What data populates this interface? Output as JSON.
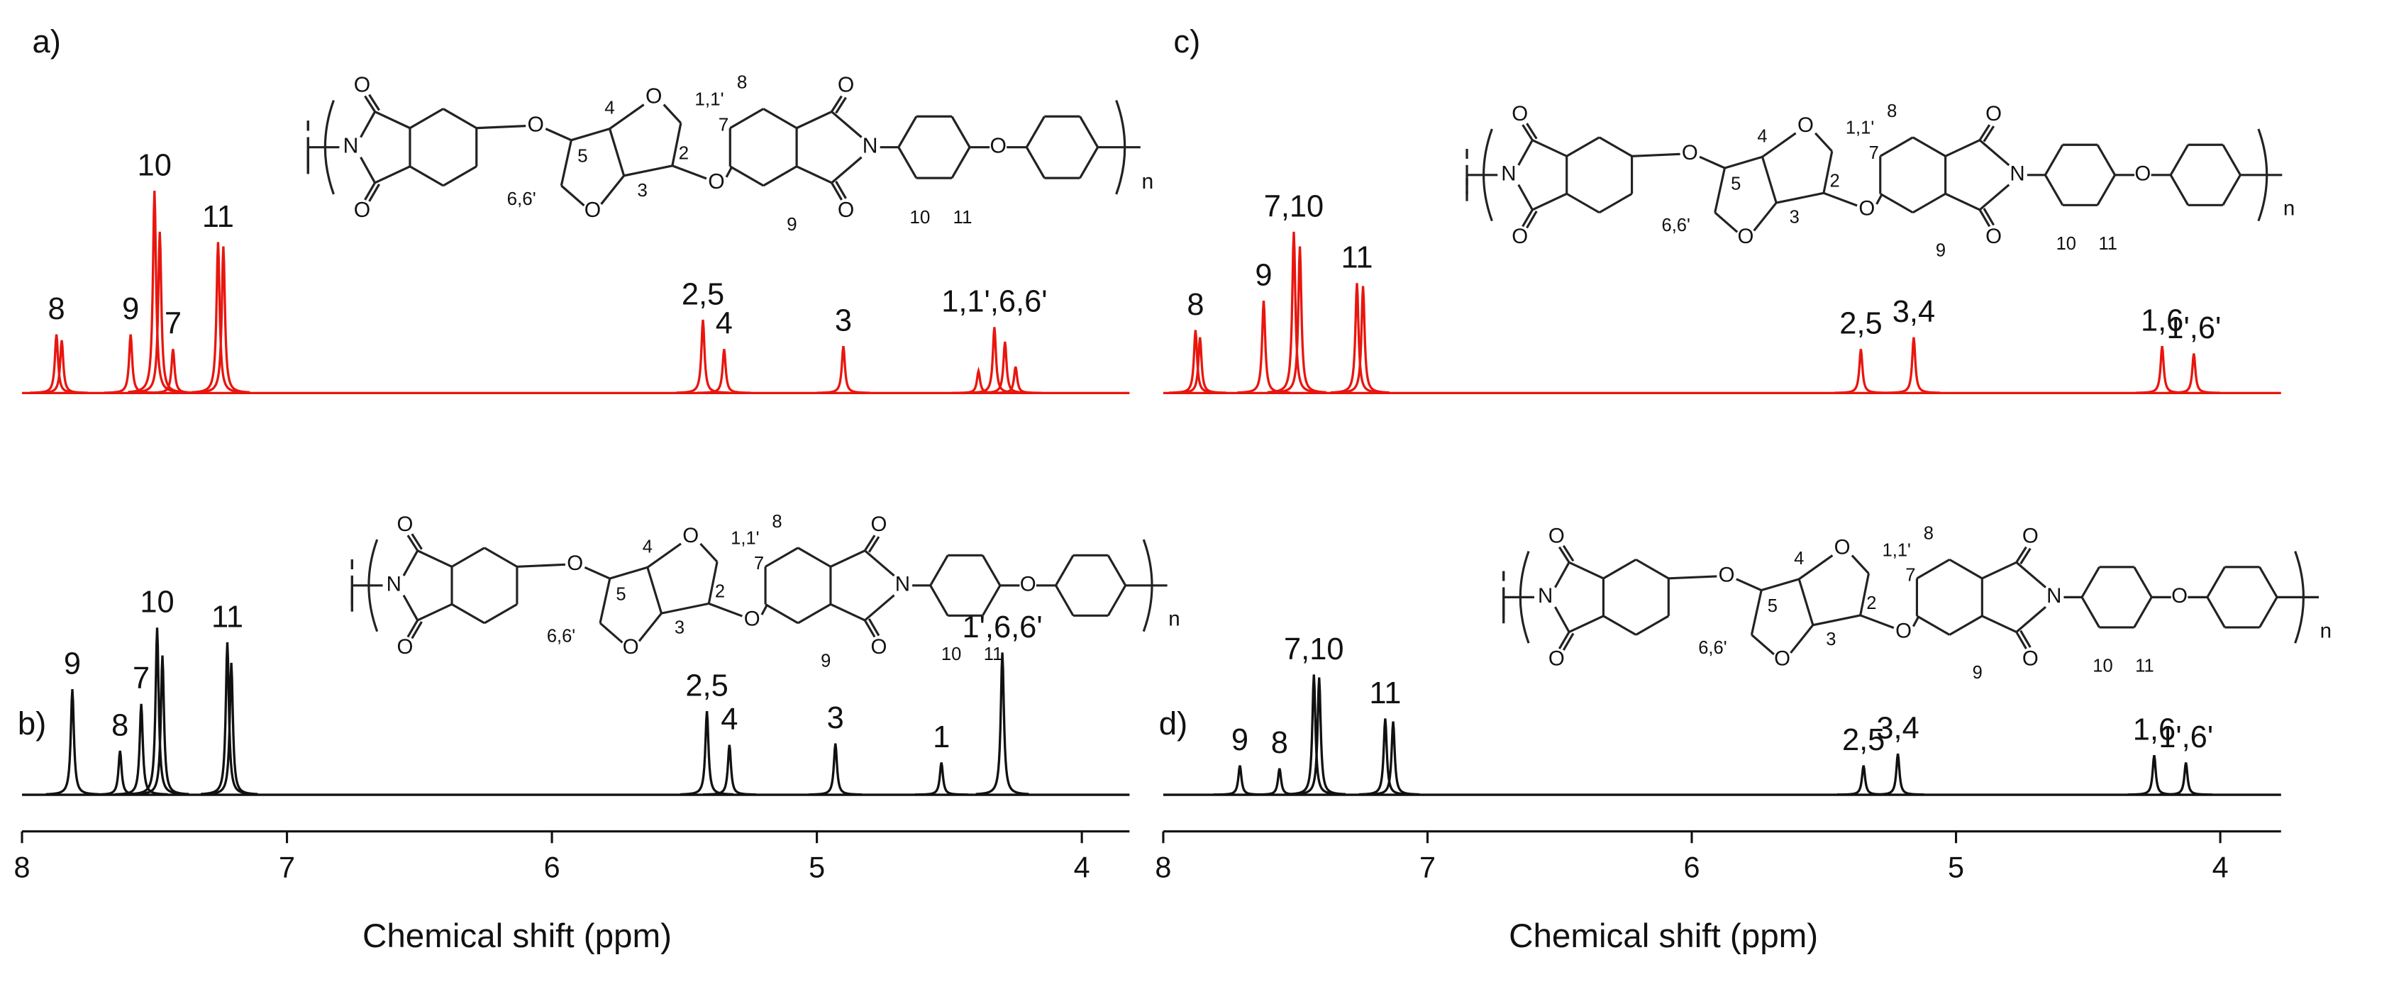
{
  "chart_data": [
    {
      "type": "spectrum",
      "x_label": "Chemical shift (ppm)",
      "xlim": [
        8,
        3.82
      ],
      "xticks": [
        8,
        7,
        6,
        5,
        4
      ],
      "panels": [
        {
          "panel_label": "a)",
          "color": "#e8160e",
          "ppm": [
            7.87,
            7.85,
            7.59,
            7.5,
            7.48,
            7.43,
            7.26,
            7.24,
            5.43,
            5.35,
            4.9,
            4.39,
            4.33,
            4.29,
            4.25
          ],
          "intensity": [
            40,
            36,
            40,
            138,
            110,
            30,
            103,
            100,
            50,
            30,
            32,
            15,
            45,
            35,
            18
          ],
          "labels": [
            "8",
            null,
            "9",
            "10",
            null,
            "7",
            "11",
            null,
            "2,5",
            "4",
            "3",
            null,
            "1,1',6,6'",
            null,
            null
          ],
          "structure_labels": [
            "O",
            "O",
            "N",
            "O",
            "5",
            "4",
            "3",
            "O",
            "O",
            "6,6'",
            "2",
            "1,1'",
            "7",
            "O",
            "8",
            "9",
            "O",
            "O",
            "N",
            "10",
            "11",
            "O",
            "n"
          ]
        },
        {
          "panel_label": "b)",
          "color": "#111111",
          "ppm": [
            7.81,
            7.63,
            7.55,
            7.49,
            7.47,
            7.225,
            7.21,
            5.415,
            5.33,
            4.93,
            4.53,
            4.3
          ],
          "intensity": [
            72,
            30,
            62,
            114,
            95,
            104,
            90,
            57,
            34,
            35,
            22,
            97
          ],
          "labels": [
            "9",
            "8",
            "7",
            "10",
            null,
            "11",
            null,
            "2,5",
            "4",
            "3",
            "1",
            "1',6,6'"
          ],
          "structure_labels": [
            "O",
            "O",
            "N",
            "O",
            "5",
            "4",
            "3",
            "O",
            "O",
            "6,6'",
            "2",
            "1,1'",
            "7",
            "O",
            "8",
            "9",
            "O",
            "O",
            "N",
            "10",
            "11",
            "O",
            "n"
          ]
        }
      ]
    },
    {
      "type": "spectrum",
      "x_label": "Chemical shift (ppm)",
      "xlim": [
        8,
        3.77
      ],
      "xticks": [
        8,
        7,
        6,
        5,
        4
      ],
      "panels": [
        {
          "panel_label": "c)",
          "color": "#e8160e",
          "ppm": [
            7.878,
            7.861,
            7.62,
            7.506,
            7.483,
            7.267,
            7.244,
            5.36,
            5.16,
            4.22,
            4.1
          ],
          "intensity": [
            43,
            38,
            63,
            110,
            100,
            75,
            73,
            30,
            38,
            32,
            27
          ],
          "labels": [
            "8",
            null,
            "9",
            "7,10",
            null,
            "11",
            null,
            "2,5",
            "3,4",
            "1,6",
            "1',6'"
          ],
          "structure_labels": [
            "O",
            "O",
            "N",
            "O",
            "5",
            "4",
            "3",
            "O",
            "O",
            "6,6'",
            "2",
            "1,1'",
            "7",
            "O",
            "8",
            "9",
            "O",
            "O",
            "N",
            "10",
            "11",
            "O",
            "n"
          ]
        },
        {
          "panel_label": "d)",
          "color": "#111111",
          "ppm": [
            7.71,
            7.56,
            7.43,
            7.41,
            7.16,
            7.13,
            5.35,
            5.22,
            4.25,
            4.13
          ],
          "intensity": [
            20,
            18,
            82,
            80,
            52,
            50,
            20,
            28,
            27,
            22
          ],
          "labels": [
            "9",
            "8",
            "7,10",
            null,
            "11",
            null,
            "2,5",
            "3,4",
            "1,6",
            "1',6'"
          ],
          "structure_labels": [
            "O",
            "O",
            "N",
            "O",
            "5",
            "4",
            "3",
            "O",
            "O",
            "6,6'",
            "2",
            "1,1'",
            "7",
            "O",
            "8",
            "9",
            "O",
            "O",
            "N",
            "10",
            "11",
            "O",
            "n"
          ]
        }
      ]
    }
  ]
}
